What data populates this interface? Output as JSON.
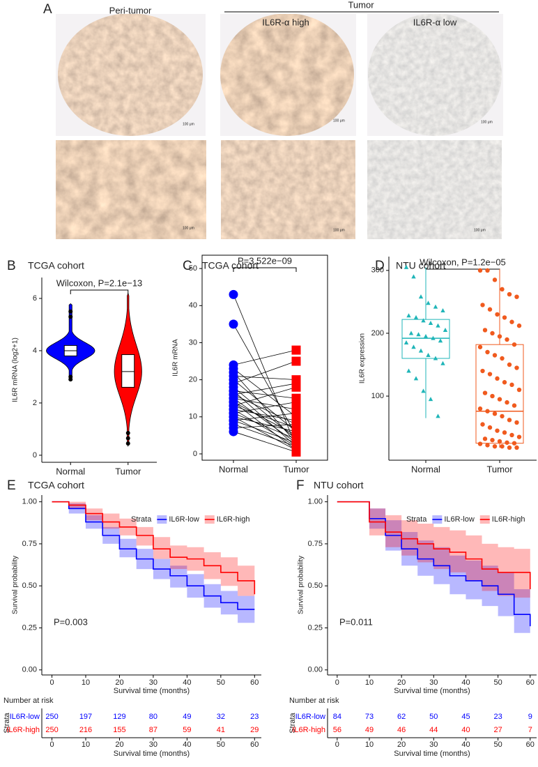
{
  "panel_a": {
    "label": "A",
    "peri_tumor": "Peri-tumor",
    "tumor": "Tumor",
    "high": "IL6R-α high",
    "low": "IL6R-α low",
    "scale_bars": [
      "100 μm",
      "100 μm",
      "100 μm",
      "100 μm",
      "100 μm",
      "100 μm"
    ]
  },
  "chart_data": [
    {
      "type": "violin",
      "panel": "B",
      "title": "TCGA cohort",
      "annotation": "Wilcoxon, P=2.1e−13",
      "ylabel": "IL6R mRNA (log2+1)",
      "categories": [
        "Normal",
        "Tumor"
      ],
      "colors": [
        "#0000ff",
        "#ff0000"
      ],
      "boxes": [
        {
          "min": 2.9,
          "q1": 3.8,
          "median": 4.0,
          "q3": 4.2,
          "max": 5.8,
          "outliers": [
            5.5,
            5.3,
            3.0,
            2.9
          ]
        },
        {
          "min": 0.35,
          "q1": 2.6,
          "median": 3.2,
          "q3": 3.85,
          "max": 6.2,
          "outliers": [
            0.85,
            0.65,
            0.45
          ]
        }
      ],
      "ylim": [
        -0.27,
        6.8
      ],
      "yticks": [
        0,
        2,
        4,
        6
      ]
    },
    {
      "type": "paired",
      "panel": "C",
      "title": "TCGA cohort",
      "annotation": "P=3.522e−09",
      "ylabel": "IL6R mRNA",
      "categories": [
        "Normal",
        "Tumor"
      ],
      "colors": [
        "#0000ff",
        "#ff0000"
      ],
      "values": [
        [
          43,
          35,
          24,
          23,
          22,
          21,
          20,
          19,
          18,
          17,
          17,
          16,
          16,
          15,
          15,
          14,
          14,
          13,
          13,
          12,
          12,
          11,
          11,
          10,
          10,
          9,
          9,
          8,
          7,
          6
        ],
        [
          2,
          5,
          28,
          10,
          3,
          20,
          6,
          25,
          4,
          15,
          2,
          8,
          19,
          3,
          12,
          5,
          1,
          7,
          18,
          2,
          9,
          4,
          14,
          1,
          6,
          3,
          11,
          2,
          8,
          0.5
        ]
      ],
      "ylim": [
        -1.7,
        53.6
      ],
      "yticks": [
        0,
        10,
        20,
        30,
        40,
        50
      ]
    },
    {
      "type": "box",
      "panel": "D",
      "title": "NTU cohort",
      "annotation": "Wilcoxon, P=1.2e−05",
      "ylabel": "IL6R expression",
      "categories": [
        "Normal",
        "Tumor"
      ],
      "colors": [
        "#1fb5b8",
        "#f05a1e"
      ],
      "boxes": [
        {
          "min": 65,
          "q1": 160,
          "median": 192,
          "q3": 222,
          "max": 305
        },
        {
          "min": 18,
          "q1": 25,
          "median": 76,
          "q3": 182,
          "max": 302
        }
      ],
      "points": [
        [
          305,
          290,
          258,
          248,
          242,
          236,
          228,
          225,
          220,
          216,
          212,
          205,
          200,
          198,
          195,
          192,
          188,
          185,
          178,
          172,
          165,
          160,
          152,
          140,
          128,
          108,
          95,
          68
        ],
        [
          300,
          300,
          285,
          270,
          262,
          258,
          245,
          238,
          230,
          225,
          218,
          212,
          205,
          200,
          195,
          190,
          182,
          178,
          170,
          165,
          160,
          150,
          145,
          140,
          135,
          128,
          122,
          118,
          110,
          105,
          100,
          95,
          90,
          85,
          80,
          76,
          72,
          68,
          62,
          58,
          55,
          50,
          45,
          42,
          38,
          35,
          32,
          30,
          28,
          26,
          25,
          24,
          22,
          20,
          20,
          18,
          18
        ]
      ],
      "ylim": [
        -2,
        322
      ],
      "yticks": [
        100,
        200,
        300
      ]
    },
    {
      "type": "km",
      "panel": "E",
      "title": "TCGA cohort",
      "xlabel": "Survival time (months)",
      "ylabel": "Survival probability",
      "legend_title": "Strata",
      "pvalue": "P=0.003",
      "x": [
        0,
        5,
        10,
        15,
        20,
        25,
        30,
        35,
        40,
        45,
        50,
        55,
        60
      ],
      "series": [
        {
          "name": "IL6R-low",
          "color": "#0000ff",
          "values": [
            1,
            0.96,
            0.88,
            0.8,
            0.72,
            0.66,
            0.6,
            0.56,
            0.5,
            0.44,
            0.4,
            0.36,
            0.36
          ],
          "lower": [
            1,
            0.93,
            0.84,
            0.75,
            0.67,
            0.6,
            0.54,
            0.49,
            0.43,
            0.37,
            0.33,
            0.28,
            0.27
          ],
          "upper": [
            1,
            0.99,
            0.92,
            0.85,
            0.78,
            0.72,
            0.66,
            0.62,
            0.57,
            0.51,
            0.47,
            0.44,
            0.45
          ]
        },
        {
          "name": "IL6R-high",
          "color": "#ff0000",
          "values": [
            1,
            0.98,
            0.93,
            0.88,
            0.85,
            0.8,
            0.72,
            0.67,
            0.66,
            0.62,
            0.58,
            0.53,
            0.45
          ],
          "lower": [
            1,
            0.96,
            0.89,
            0.84,
            0.8,
            0.74,
            0.66,
            0.6,
            0.59,
            0.54,
            0.5,
            0.44,
            0.35
          ],
          "upper": [
            1,
            1.0,
            0.96,
            0.93,
            0.9,
            0.85,
            0.79,
            0.74,
            0.73,
            0.7,
            0.67,
            0.62,
            0.57
          ]
        }
      ],
      "xlim": [
        -3,
        62
      ],
      "xticks": [
        0,
        10,
        20,
        30,
        40,
        50,
        60
      ],
      "ylim": [
        -0.03,
        1.04
      ],
      "yticks": [
        {
          "value": 0,
          "label": "0.00"
        },
        {
          "value": 0.25,
          "label": "0.25"
        },
        {
          "value": 0.5,
          "label": "0.50"
        },
        {
          "value": 0.75,
          "label": "0.75"
        },
        {
          "value": 1,
          "label": "1.00"
        }
      ],
      "risk_table": {
        "title": "Number at risk",
        "ylabel": "Strata",
        "xlabel": "Survival time (months)",
        "times": [
          0,
          10,
          20,
          30,
          40,
          50,
          60
        ],
        "counts": [
          [
            250,
            197,
            129,
            80,
            49,
            32,
            23
          ],
          [
            250,
            216,
            155,
            87,
            59,
            41,
            29
          ]
        ]
      }
    },
    {
      "type": "km",
      "panel": "F",
      "title": "NTU cohort",
      "xlabel": "Survival time (months)",
      "ylabel": "Survival probability",
      "legend_title": "Strata",
      "pvalue": "P=0.011",
      "x": [
        0,
        5,
        10,
        15,
        20,
        25,
        30,
        35,
        40,
        45,
        50,
        55,
        60
      ],
      "series": [
        {
          "name": "IL6R-low",
          "color": "#0000ff",
          "values": [
            1,
            1,
            0.9,
            0.8,
            0.72,
            0.66,
            0.62,
            0.56,
            0.53,
            0.5,
            0.45,
            0.33,
            0.26
          ],
          "lower": [
            1,
            1,
            0.84,
            0.71,
            0.62,
            0.56,
            0.51,
            0.45,
            0.42,
            0.38,
            0.32,
            0.22,
            0.17
          ],
          "upper": [
            1,
            1,
            0.96,
            0.89,
            0.82,
            0.77,
            0.73,
            0.68,
            0.65,
            0.62,
            0.58,
            0.48,
            0.4
          ]
        },
        {
          "name": "IL6R-high",
          "color": "#ff0000",
          "values": [
            1,
            1,
            0.88,
            0.82,
            0.78,
            0.75,
            0.72,
            0.7,
            0.66,
            0.6,
            0.58,
            0.58,
            0.48
          ],
          "lower": [
            1,
            1,
            0.8,
            0.73,
            0.68,
            0.64,
            0.6,
            0.58,
            0.53,
            0.47,
            0.44,
            0.43,
            0.33
          ],
          "upper": [
            1,
            1,
            0.96,
            0.92,
            0.89,
            0.87,
            0.85,
            0.83,
            0.8,
            0.75,
            0.73,
            0.72,
            0.65
          ]
        }
      ],
      "xlim": [
        -3,
        62
      ],
      "xticks": [
        0,
        10,
        20,
        30,
        40,
        50,
        60
      ],
      "ylim": [
        -0.03,
        1.04
      ],
      "yticks": [
        {
          "value": 0,
          "label": "0.00"
        },
        {
          "value": 0.25,
          "label": "0.25"
        },
        {
          "value": 0.5,
          "label": "0.50"
        },
        {
          "value": 0.75,
          "label": "0.75"
        },
        {
          "value": 1,
          "label": "1.00"
        }
      ],
      "risk_table": {
        "title": "Number at risk",
        "ylabel": "Strata",
        "xlabel": "Survival time (months)",
        "times": [
          0,
          10,
          20,
          30,
          40,
          50,
          60
        ],
        "counts": [
          [
            84,
            73,
            62,
            50,
            45,
            23,
            9
          ],
          [
            56,
            49,
            46,
            44,
            40,
            27,
            7
          ]
        ]
      }
    }
  ]
}
